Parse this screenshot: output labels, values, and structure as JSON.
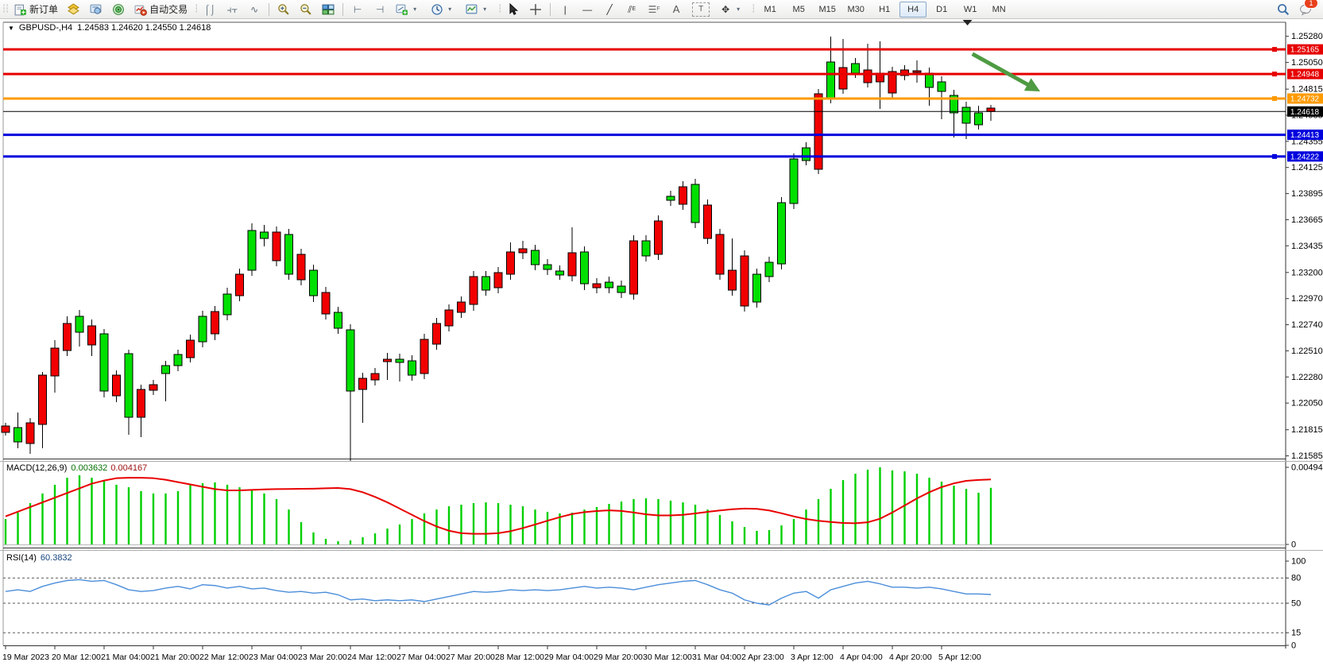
{
  "toolbar": {
    "new_order_label": "新订单",
    "auto_trading_label": "自动交易",
    "timeframes": [
      "M1",
      "M5",
      "M15",
      "M30",
      "H1",
      "H4",
      "D1",
      "W1",
      "MN"
    ],
    "active_timeframe": "H4",
    "notification_badge": "1"
  },
  "chart_header": {
    "collapse_glyph": "▼",
    "symbol": "GBPUSD-,H4",
    "ohlc_quote": "1.24583 1.24620 1.24550 1.24618"
  },
  "price_axis_ticks": [
    "1.25280",
    "1.25050",
    "1.24815",
    "1.24585",
    "1.24355",
    "1.24125",
    "1.23895",
    "1.23665",
    "1.23435",
    "1.23200",
    "1.22970",
    "1.22740",
    "1.22510",
    "1.22280",
    "1.22050",
    "1.21815",
    "1.21585"
  ],
  "hlines": [
    {
      "price": 1.25165,
      "label": "1.25165",
      "color": "#e60000",
      "thickness": 3,
      "handle": true
    },
    {
      "price": 1.24948,
      "label": "1.24948",
      "color": "#e60000",
      "thickness": 3,
      "handle": true
    },
    {
      "price": 1.24732,
      "label": "1.24732",
      "color": "#ff9a00",
      "thickness": 3,
      "handle": true
    },
    {
      "price": 1.24618,
      "label": "1.24618",
      "color": "#000000",
      "thickness": 1,
      "handle": false
    },
    {
      "price": 1.24413,
      "label": "1.24413",
      "color": "#0000dd",
      "thickness": 3,
      "handle": false
    },
    {
      "price": 1.24222,
      "label": "1.24222",
      "color": "#0000dd",
      "thickness": 3,
      "handle": true
    }
  ],
  "indicators": {
    "macd": {
      "name": "MACD(12,26,9)",
      "value_main": "0.003632",
      "value_signal": "0.004167",
      "scale_max": "0.004948",
      "scale_min": "0"
    },
    "rsi": {
      "name": "RSI(14)",
      "value": "60.3832",
      "levels": [
        "100",
        "80",
        "50",
        "15",
        "0"
      ]
    }
  },
  "chart_data": {
    "type": "candlestick",
    "symbol": "GBPUSD",
    "timeframe": "H4",
    "x_labels": [
      "19 Mar 2023",
      "20 Mar 12:00",
      "21 Mar 04:00",
      "21 Mar 20:00",
      "22 Mar 12:00",
      "23 Mar 04:00",
      "23 Mar 20:00",
      "24 Mar 12:00",
      "27 Mar 04:00",
      "27 Mar 20:00",
      "28 Mar 12:00",
      "29 Mar 04:00",
      "29 Mar 20:00",
      "30 Mar 12:00",
      "31 Mar 04:00",
      "2 Apr 23:00",
      "3 Apr 12:00",
      "4 Apr 04:00",
      "4 Apr 20:00",
      "5 Apr 12:00"
    ],
    "candles_ohlc": [
      [
        1.21848,
        1.21876,
        1.21764,
        1.21792
      ],
      [
        1.21708,
        1.21967,
        1.21652,
        1.21834
      ],
      [
        1.21876,
        1.21918,
        1.21603,
        1.21694
      ],
      [
        1.22296,
        1.22324,
        1.21652,
        1.21862
      ],
      [
        1.22534,
        1.22604,
        1.22142,
        1.22289
      ],
      [
        1.22751,
        1.22814,
        1.22464,
        1.22513
      ],
      [
        1.22674,
        1.2287,
        1.22548,
        1.22814
      ],
      [
        1.2273,
        1.22786,
        1.22464,
        1.22562
      ],
      [
        1.22156,
        1.22702,
        1.221,
        1.2266
      ],
      [
        1.22296,
        1.22338,
        1.22058,
        1.22114
      ],
      [
        1.21925,
        1.2252,
        1.21771,
        1.22485
      ],
      [
        1.2217,
        1.22212,
        1.2175,
        1.21925
      ],
      [
        1.22212,
        1.22254,
        1.22121,
        1.22163
      ],
      [
        1.2231,
        1.22422,
        1.22065,
        1.2238
      ],
      [
        1.2238,
        1.2252,
        1.22331,
        1.22478
      ],
      [
        1.22604,
        1.22653,
        1.22408,
        1.2245
      ],
      [
        1.2259,
        1.22863,
        1.22541,
        1.22814
      ],
      [
        1.22856,
        1.22905,
        1.22604,
        1.2266
      ],
      [
        1.22828,
        1.23066,
        1.22779,
        1.2301
      ],
      [
        1.23185,
        1.23234,
        1.22947,
        1.22996
      ],
      [
        1.2322,
        1.23633,
        1.23171,
        1.2357
      ],
      [
        1.235,
        1.23619,
        1.2343,
        1.23556
      ],
      [
        1.23556,
        1.23605,
        1.23255,
        1.23304
      ],
      [
        1.23185,
        1.23584,
        1.23136,
        1.23535
      ],
      [
        1.2336,
        1.23409,
        1.23087,
        1.23136
      ],
      [
        1.22996,
        1.23269,
        1.2294,
        1.2322
      ],
      [
        1.23024,
        1.23073,
        1.22786,
        1.22835
      ],
      [
        1.22709,
        1.22898,
        1.2266,
        1.22849
      ],
      [
        1.22156,
        1.22744,
        1.2154,
        1.22695
      ],
      [
        1.22268,
        1.22317,
        1.21876,
        1.2217
      ],
      [
        1.2231,
        1.22359,
        1.22205,
        1.22254
      ],
      [
        1.22436,
        1.22492,
        1.22254,
        1.22415
      ],
      [
        1.22408,
        1.22485,
        1.2224,
        1.22436
      ],
      [
        1.22296,
        1.22471,
        1.22247,
        1.22422
      ],
      [
        1.22611,
        1.2266,
        1.22261,
        1.2231
      ],
      [
        1.22751,
        1.228,
        1.2252,
        1.22569
      ],
      [
        1.2287,
        1.22919,
        1.22681,
        1.2273
      ],
      [
        1.2294,
        1.22989,
        1.228,
        1.22849
      ],
      [
        1.23164,
        1.23213,
        1.22863,
        1.22919
      ],
      [
        1.23045,
        1.23213,
        1.22996,
        1.23164
      ],
      [
        1.23199,
        1.23248,
        1.23017,
        1.23066
      ],
      [
        1.23381,
        1.23465,
        1.23136,
        1.23185
      ],
      [
        1.23409,
        1.23479,
        1.23318,
        1.23374
      ],
      [
        1.23269,
        1.23444,
        1.2322,
        1.23395
      ],
      [
        1.23227,
        1.23318,
        1.23178,
        1.23269
      ],
      [
        1.23178,
        1.23262,
        1.23136,
        1.23213
      ],
      [
        1.23374,
        1.23598,
        1.23122,
        1.23171
      ],
      [
        1.23101,
        1.2343,
        1.23045,
        1.23381
      ],
      [
        1.23101,
        1.2315,
        1.23017,
        1.23066
      ],
      [
        1.23066,
        1.23164,
        1.23017,
        1.23115
      ],
      [
        1.23024,
        1.23129,
        1.22975,
        1.2308
      ],
      [
        1.23479,
        1.23528,
        1.22961,
        1.2301
      ],
      [
        1.23346,
        1.23528,
        1.23297,
        1.23479
      ],
      [
        1.23654,
        1.23703,
        1.23311,
        1.2336
      ],
      [
        1.23836,
        1.2392,
        1.23787,
        1.23871
      ],
      [
        1.23955,
        1.24004,
        1.23752,
        1.23801
      ],
      [
        1.2364,
        1.24025,
        1.23591,
        1.23976
      ],
      [
        1.23794,
        1.23843,
        1.23451,
        1.235
      ],
      [
        1.23535,
        1.23584,
        1.23136,
        1.23185
      ],
      [
        1.2322,
        1.235,
        1.22996,
        1.23045
      ],
      [
        1.23346,
        1.23395,
        1.22856,
        1.22905
      ],
      [
        1.2294,
        1.23234,
        1.22891,
        1.23185
      ],
      [
        1.23164,
        1.23339,
        1.23115,
        1.2329
      ],
      [
        1.23276,
        1.23864,
        1.23227,
        1.23815
      ],
      [
        1.23808,
        1.24249,
        1.23759,
        1.242
      ],
      [
        1.24186,
        1.24347,
        1.24144,
        1.24298
      ],
      [
        1.24774,
        1.24816,
        1.24067,
        1.24109
      ],
      [
        1.24739,
        1.25278,
        1.2469,
        1.25054
      ],
      [
        1.25005,
        1.25257,
        1.24774,
        1.24816
      ],
      [
        1.24956,
        1.25089,
        1.24914,
        1.2504
      ],
      [
        1.24984,
        1.25215,
        1.2483,
        1.24872
      ],
      [
        1.24956,
        1.25236,
        1.24641,
        1.24879
      ],
      [
        1.2497,
        1.25012,
        1.24739,
        1.24781
      ],
      [
        1.24984,
        1.25026,
        1.24893,
        1.24935
      ],
      [
        1.24977,
        1.25068,
        1.24872,
        1.24963
      ],
      [
        1.2483,
        1.25005,
        1.24669,
        1.24956
      ],
      [
        1.24795,
        1.24928,
        1.2455,
        1.24879
      ],
      [
        1.24606,
        1.24809,
        1.24389,
        1.2476
      ],
      [
        1.24515,
        1.24704,
        1.24375,
        1.24655
      ],
      [
        1.24501,
        1.24669,
        1.24459,
        1.24606
      ],
      [
        1.24648,
        1.24676,
        1.24536,
        1.24618
      ]
    ],
    "macd_histogram": [
      0.00163,
      0.00204,
      0.00265,
      0.00327,
      0.00383,
      0.00428,
      0.00444,
      0.00428,
      0.00408,
      0.00383,
      0.00367,
      0.00342,
      0.00327,
      0.00327,
      0.00342,
      0.00383,
      0.00393,
      0.00398,
      0.00383,
      0.00367,
      0.00352,
      0.00327,
      0.00291,
      0.00224,
      0.00143,
      0.00077,
      0.00036,
      0.0002,
      0.00026,
      0.00046,
      0.00071,
      0.00102,
      0.00128,
      0.00163,
      0.00199,
      0.00224,
      0.00245,
      0.00255,
      0.00265,
      0.0027,
      0.00265,
      0.00255,
      0.00245,
      0.00224,
      0.00209,
      0.00199,
      0.00204,
      0.00224,
      0.0024,
      0.0026,
      0.00275,
      0.00291,
      0.00296,
      0.00291,
      0.00281,
      0.0027,
      0.00255,
      0.00224,
      0.00189,
      0.00148,
      0.00112,
      0.00087,
      0.00092,
      0.00122,
      0.00163,
      0.00224,
      0.00291,
      0.00357,
      0.00413,
      0.00454,
      0.0048,
      0.004948,
      0.00475,
      0.00469,
      0.00454,
      0.00428,
      0.00403,
      0.00377,
      0.00357,
      0.00332,
      0.003632
    ],
    "macd_signal": [
      0.0018,
      0.0021,
      0.0024,
      0.0027,
      0.003,
      0.0033,
      0.0036,
      0.0039,
      0.0041,
      0.00425,
      0.00428,
      0.00428,
      0.00425,
      0.00415,
      0.004,
      0.00385,
      0.0037,
      0.00355,
      0.00347,
      0.00347,
      0.0035,
      0.00353,
      0.00355,
      0.00356,
      0.00357,
      0.00358,
      0.0036,
      0.00362,
      0.00355,
      0.00335,
      0.00305,
      0.0027,
      0.0023,
      0.0019,
      0.0015,
      0.00115,
      0.00088,
      0.00072,
      0.00068,
      0.00068,
      0.00072,
      0.00085,
      0.00105,
      0.00128,
      0.00152,
      0.00175,
      0.00195,
      0.00207,
      0.00214,
      0.00219,
      0.00215,
      0.00205,
      0.00193,
      0.00186,
      0.00186,
      0.0019,
      0.00199,
      0.00209,
      0.00218,
      0.00226,
      0.0023,
      0.00228,
      0.00218,
      0.002,
      0.0018,
      0.00163,
      0.00152,
      0.00144,
      0.00138,
      0.00136,
      0.00142,
      0.00165,
      0.00205,
      0.0025,
      0.00295,
      0.00335,
      0.00368,
      0.00392,
      0.00408,
      0.00414,
      0.004167
    ],
    "rsi_values": [
      64,
      66,
      64,
      70,
      74,
      77,
      78,
      76,
      77,
      72,
      66,
      64,
      65,
      68,
      70,
      67,
      72,
      71,
      68,
      70,
      67,
      68,
      65,
      63,
      64,
      62,
      63,
      60,
      54,
      55,
      53,
      54,
      53,
      54,
      52,
      55,
      58,
      61,
      64,
      63,
      64,
      66,
      65,
      66,
      65,
      66,
      68,
      70,
      68,
      69,
      68,
      66,
      69,
      72,
      74,
      76,
      77,
      72,
      66,
      62,
      54,
      50,
      48,
      56,
      62,
      64,
      56,
      66,
      70,
      74,
      76,
      73,
      69,
      69,
      68,
      69,
      67,
      64,
      61,
      61,
      60.38
    ],
    "colors": {
      "up": "#00e000",
      "down": "#f20000",
      "wick": "#000000",
      "macd_hist": "#00cf00",
      "macd_signal": "#e80000",
      "rsi_line": "#4b8edb"
    }
  },
  "annotations": {
    "trend_arrow": {
      "color": "#4e9b42",
      "from_candle": 78.5,
      "from_price": 1.25125,
      "to_candle": 84.0,
      "to_price": 1.24795
    },
    "shift_marker_candle": 78.1
  }
}
